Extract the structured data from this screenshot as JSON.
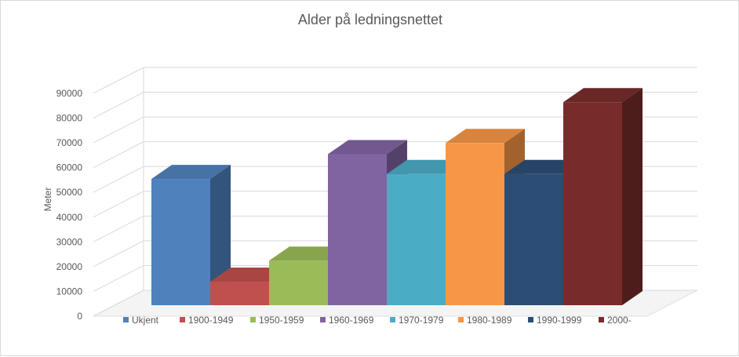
{
  "chart_data": {
    "type": "bar",
    "title": "Alder på ledningsnettet",
    "xlabel": "",
    "ylabel": "Meter",
    "ylim": [
      0,
      90000
    ],
    "yticks": [
      0,
      10000,
      20000,
      30000,
      40000,
      50000,
      60000,
      70000,
      80000,
      90000
    ],
    "grid": true,
    "legend_position": "bottom",
    "three_d": true,
    "series": [
      {
        "name": "Ukjent",
        "value": 51000,
        "color": "#4f81bd"
      },
      {
        "name": "1900-1949",
        "value": 9500,
        "color": "#c0504d"
      },
      {
        "name": "1950-1959",
        "value": 18000,
        "color": "#9bbb59"
      },
      {
        "name": "1960-1969",
        "value": 61000,
        "color": "#8064a2"
      },
      {
        "name": "1970-1979",
        "value": 53000,
        "color": "#4bacc6"
      },
      {
        "name": "1980-1989",
        "value": 65500,
        "color": "#f79646"
      },
      {
        "name": "1990-1999",
        "value": 53000,
        "color": "#2c4d75"
      },
      {
        "name": "2000-",
        "value": 82000,
        "color": "#772c2a"
      }
    ]
  }
}
